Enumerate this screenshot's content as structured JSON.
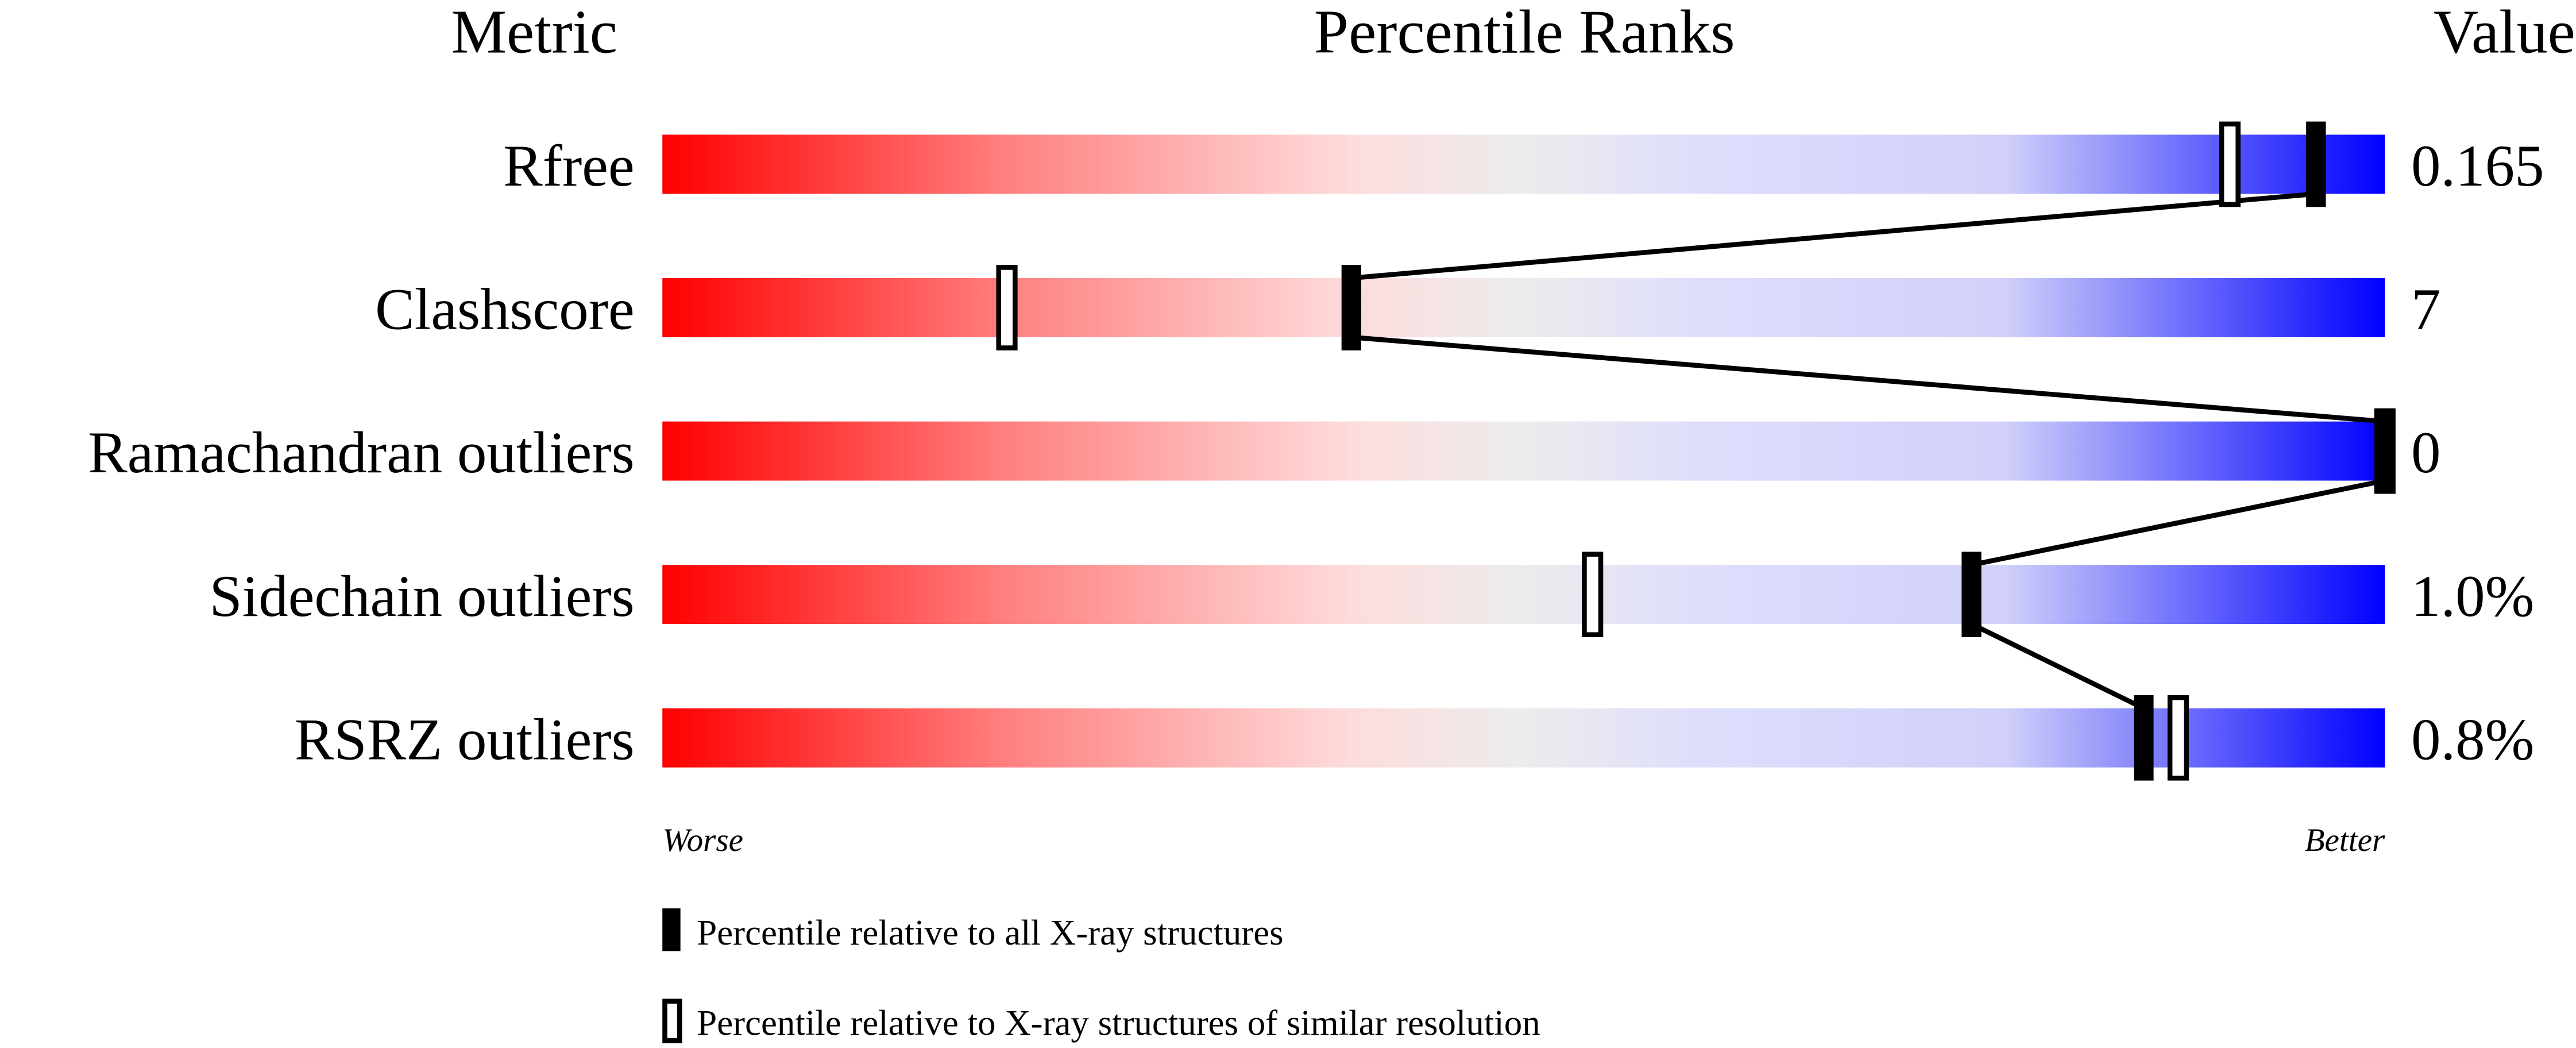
{
  "chart_data": {
    "type": "percentile-slider",
    "headers": {
      "metric": "Metric",
      "ranks": "Percentile Ranks",
      "value": "Value"
    },
    "xlim": [
      0,
      100
    ],
    "axis_labels": {
      "left": "Worse",
      "right": "Better"
    },
    "gradient_colors": [
      "#ff0000",
      "#ff8080",
      "#fddcdc",
      "#ececec",
      "#dedefc",
      "#d0d0fa",
      "#0000ff"
    ],
    "metrics": [
      {
        "name": "Rfree",
        "value": "0.165",
        "percentile_all": 96,
        "percentile_similar": 91
      },
      {
        "name": "Clashscore",
        "value": "7",
        "percentile_all": 40,
        "percentile_similar": 20
      },
      {
        "name": "Ramachandran outliers",
        "value": "0",
        "percentile_all": 100,
        "percentile_similar": 100
      },
      {
        "name": "Sidechain outliers",
        "value": "1.0%",
        "percentile_all": 76,
        "percentile_similar": 54
      },
      {
        "name": "RSRZ outliers",
        "value": "0.8%",
        "percentile_all": 86,
        "percentile_similar": 88
      }
    ],
    "legend": [
      {
        "marker": "filled",
        "label": "Percentile relative to all X-ray structures"
      },
      {
        "marker": "open",
        "label": "Percentile relative to X-ray structures of similar resolution"
      }
    ]
  }
}
